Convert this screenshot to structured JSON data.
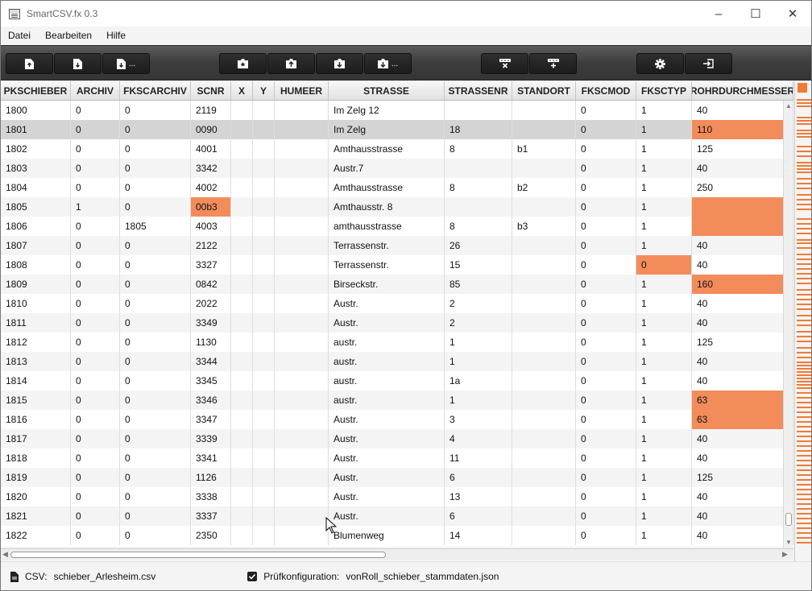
{
  "window": {
    "title": "SmartCSV.fx 0.3",
    "minimize_glyph": "–",
    "maximize_glyph": "☐",
    "close_glyph": "✕"
  },
  "menu": [
    {
      "label": "Datei"
    },
    {
      "label": "Bearbeiten"
    },
    {
      "label": "Hilfe"
    }
  ],
  "toolbar": {
    "groups": [
      {
        "buttons": [
          {
            "icon": "file-import-icon",
            "more": ""
          },
          {
            "icon": "file-export-icon",
            "more": ""
          },
          {
            "icon": "file-export-as-icon",
            "more": "..."
          }
        ]
      },
      {
        "buttons": [
          {
            "icon": "load-config-icon",
            "more": ""
          },
          {
            "icon": "upload-config-icon",
            "more": ""
          },
          {
            "icon": "save-config-icon",
            "more": ""
          },
          {
            "icon": "save-config-as-icon",
            "more": "..."
          }
        ]
      },
      {
        "buttons": [
          {
            "icon": "delete-row-icon",
            "more": ""
          },
          {
            "icon": "add-row-icon",
            "more": ""
          }
        ]
      },
      {
        "buttons": [
          {
            "icon": "settings-gear-icon",
            "more": ""
          },
          {
            "icon": "exit-icon",
            "more": ""
          }
        ]
      }
    ]
  },
  "table": {
    "columns": [
      "PKSCHIEBER",
      "ARCHIV",
      "FKSCARCHIV",
      "SCNR",
      "X",
      "Y",
      "HUMEER",
      "STRASSE",
      "STRASSENR",
      "STANDORT",
      "FKSCMOD",
      "FKSCTYP",
      "ROHRDURCHMESSER"
    ],
    "rows": [
      [
        "1800",
        "0",
        "0",
        "2119",
        "",
        "",
        "",
        "Im Zelg 12",
        "",
        "",
        "0",
        "1",
        "40"
      ],
      [
        "1801",
        "0",
        "0",
        "0090",
        "",
        "",
        "",
        "Im Zelg",
        "18",
        "",
        "0",
        "1",
        "110"
      ],
      [
        "1802",
        "0",
        "0",
        "4001",
        "",
        "",
        "",
        "Amthausstrasse",
        "8",
        "b1",
        "0",
        "1",
        "125"
      ],
      [
        "1803",
        "0",
        "0",
        "3342",
        "",
        "",
        "",
        "Austr.7",
        "",
        "",
        "0",
        "1",
        "40"
      ],
      [
        "1804",
        "0",
        "0",
        "4002",
        "",
        "",
        "",
        "Amthausstrasse",
        "8",
        "b2",
        "0",
        "1",
        "250"
      ],
      [
        "1805",
        "1",
        "0",
        "00b3",
        "",
        "",
        "",
        "Amthausstr. 8",
        "",
        "",
        "0",
        "1",
        ""
      ],
      [
        "1806",
        "0",
        "1805",
        "4003",
        "",
        "",
        "",
        "amthausstrasse",
        "8",
        "b3",
        "0",
        "1",
        ""
      ],
      [
        "1807",
        "0",
        "0",
        "2122",
        "",
        "",
        "",
        "Terrassenstr.",
        "26",
        "",
        "0",
        "1",
        "40"
      ],
      [
        "1808",
        "0",
        "0",
        "3327",
        "",
        "",
        "",
        "Terrassenstr.",
        "15",
        "",
        "0",
        "0",
        "40"
      ],
      [
        "1809",
        "0",
        "0",
        "0842",
        "",
        "",
        "",
        "Birseckstr.",
        "85",
        "",
        "0",
        "1",
        "160"
      ],
      [
        "1810",
        "0",
        "0",
        "2022",
        "",
        "",
        "",
        "Austr.",
        "2",
        "",
        "0",
        "1",
        "40"
      ],
      [
        "1811",
        "0",
        "0",
        "3349",
        "",
        "",
        "",
        "Austr.",
        "2",
        "",
        "0",
        "1",
        "40"
      ],
      [
        "1812",
        "0",
        "0",
        "1130",
        "",
        "",
        "",
        "austr.",
        "1",
        "",
        "0",
        "1",
        "125"
      ],
      [
        "1813",
        "0",
        "0",
        "3344",
        "",
        "",
        "",
        "austr.",
        "1",
        "",
        "0",
        "1",
        "40"
      ],
      [
        "1814",
        "0",
        "0",
        "3345",
        "",
        "",
        "",
        "austr.",
        "1a",
        "",
        "0",
        "1",
        "40"
      ],
      [
        "1815",
        "0",
        "0",
        "3346",
        "",
        "",
        "",
        "austr.",
        "1",
        "",
        "0",
        "1",
        "63"
      ],
      [
        "1816",
        "0",
        "0",
        "3347",
        "",
        "",
        "",
        "Austr.",
        "3",
        "",
        "0",
        "1",
        "63"
      ],
      [
        "1817",
        "0",
        "0",
        "3339",
        "",
        "",
        "",
        "Austr.",
        "4",
        "",
        "0",
        "1",
        "40"
      ],
      [
        "1818",
        "0",
        "0",
        "3341",
        "",
        "",
        "",
        "Austr.",
        "11",
        "",
        "0",
        "1",
        "40"
      ],
      [
        "1819",
        "0",
        "0",
        "1126",
        "",
        "",
        "",
        "Austr.",
        "6",
        "",
        "0",
        "1",
        "125"
      ],
      [
        "1820",
        "0",
        "0",
        "3338",
        "",
        "",
        "",
        "Austr.",
        "13",
        "",
        "0",
        "1",
        "40"
      ],
      [
        "1821",
        "0",
        "0",
        "3337",
        "",
        "",
        "",
        "Austr.",
        "6",
        "",
        "0",
        "1",
        "40"
      ],
      [
        "1822",
        "0",
        "0",
        "2350",
        "",
        "",
        "",
        "Blumenweg",
        "14",
        "",
        "0",
        "1",
        "40"
      ]
    ],
    "selected_row": 1,
    "error_cells": [
      [
        1,
        12
      ],
      [
        5,
        3
      ],
      [
        5,
        12
      ],
      [
        6,
        12
      ],
      [
        8,
        11
      ],
      [
        9,
        12
      ],
      [
        15,
        12
      ],
      [
        16,
        12
      ]
    ],
    "error_color": "#f28c5b"
  },
  "status": {
    "csv_label": "CSV:",
    "csv_file": "schieber_Arlesheim.csv",
    "config_label": "Prüfkonfiguration:",
    "config_file": "vonRoll_schieber_stammdaten.json"
  },
  "colors": {
    "accent_error": "#f07b35",
    "toolbar_bg": "#3d3d3d"
  }
}
